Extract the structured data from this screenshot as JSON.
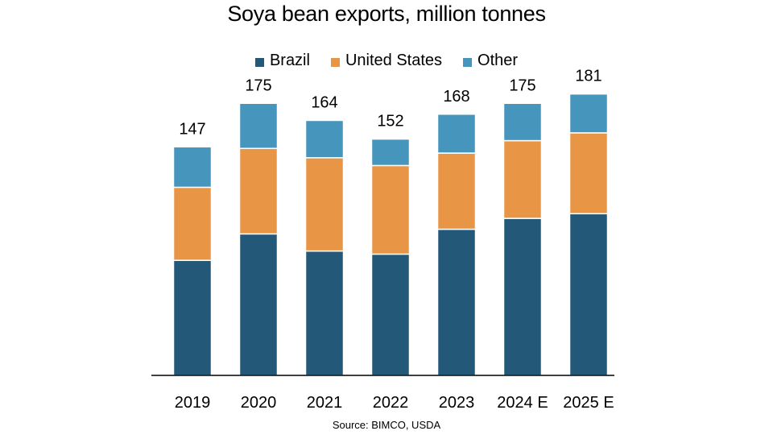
{
  "title": "Soya bean exports, million tonnes",
  "source": "Source: BIMCO, USDA",
  "colors": {
    "Brazil": "#245878",
    "United States": "#E89646",
    "Other": "#4595BC"
  },
  "chart_data": {
    "type": "bar",
    "stacked": true,
    "title": "Soya bean exports, million tonnes",
    "xlabel": "",
    "ylabel": "",
    "ylim": [
      0,
      200
    ],
    "legend_position": "top-center",
    "grid": false,
    "categories": [
      "2019",
      "2020",
      "2021",
      "2022",
      "2023",
      "2024 E",
      "2025 E"
    ],
    "totals": [
      147,
      175,
      164,
      152,
      168,
      175,
      181
    ],
    "series": [
      {
        "name": "Brazil",
        "values": [
          74,
          91,
          80,
          78,
          94,
          101,
          104
        ]
      },
      {
        "name": "United States",
        "values": [
          47,
          55,
          60,
          57,
          49,
          50,
          52
        ]
      },
      {
        "name": "Other",
        "values": [
          26,
          29,
          24,
          17,
          25,
          24,
          25
        ]
      }
    ]
  }
}
